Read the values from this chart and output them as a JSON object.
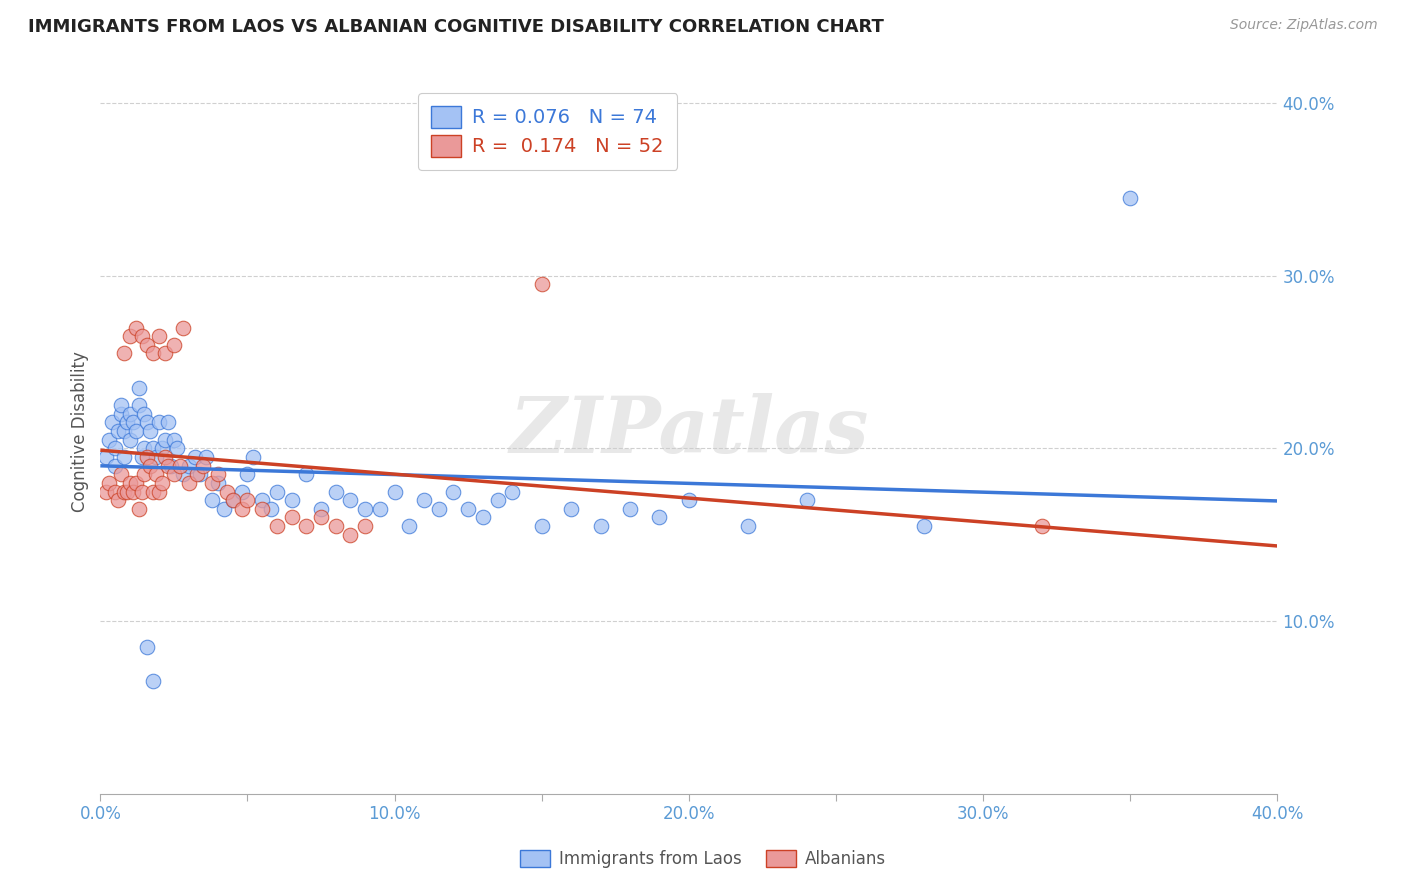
{
  "title": "IMMIGRANTS FROM LAOS VS ALBANIAN COGNITIVE DISABILITY CORRELATION CHART",
  "source": "Source: ZipAtlas.com",
  "ylabel_label": "Cognitive Disability",
  "xmin": 0.0,
  "xmax": 0.4,
  "ymin": 0.0,
  "ymax": 0.42,
  "xticks": [
    0.0,
    0.05,
    0.1,
    0.15,
    0.2,
    0.25,
    0.3,
    0.35,
    0.4
  ],
  "xtick_labels": [
    "0.0%",
    "",
    "10.0%",
    "",
    "20.0%",
    "",
    "30.0%",
    "",
    "40.0%"
  ],
  "yticks": [
    0.1,
    0.2,
    0.3,
    0.4
  ],
  "ytick_labels": [
    "10.0%",
    "20.0%",
    "30.0%",
    "40.0%"
  ],
  "color_blue": "#a4c2f4",
  "color_pink": "#ea9999",
  "color_blue_line": "#3c78d8",
  "color_pink_line": "#cc4125",
  "R_blue": 0.076,
  "N_blue": 74,
  "R_pink": 0.174,
  "N_pink": 52,
  "blue_x": [
    0.002,
    0.003,
    0.004,
    0.005,
    0.005,
    0.006,
    0.007,
    0.007,
    0.008,
    0.008,
    0.009,
    0.01,
    0.01,
    0.011,
    0.012,
    0.013,
    0.013,
    0.014,
    0.015,
    0.015,
    0.016,
    0.017,
    0.018,
    0.019,
    0.02,
    0.021,
    0.022,
    0.023,
    0.024,
    0.025,
    0.026,
    0.028,
    0.03,
    0.032,
    0.034,
    0.036,
    0.038,
    0.04,
    0.042,
    0.045,
    0.048,
    0.05,
    0.052,
    0.055,
    0.058,
    0.06,
    0.065,
    0.07,
    0.075,
    0.08,
    0.085,
    0.09,
    0.095,
    0.1,
    0.105,
    0.11,
    0.115,
    0.12,
    0.125,
    0.13,
    0.135,
    0.14,
    0.15,
    0.16,
    0.17,
    0.18,
    0.19,
    0.2,
    0.22,
    0.24,
    0.016,
    0.018,
    0.28,
    0.35
  ],
  "blue_y": [
    0.195,
    0.205,
    0.215,
    0.2,
    0.19,
    0.21,
    0.22,
    0.225,
    0.195,
    0.21,
    0.215,
    0.22,
    0.205,
    0.215,
    0.21,
    0.225,
    0.235,
    0.195,
    0.22,
    0.2,
    0.215,
    0.21,
    0.2,
    0.195,
    0.215,
    0.2,
    0.205,
    0.215,
    0.19,
    0.205,
    0.2,
    0.185,
    0.19,
    0.195,
    0.185,
    0.195,
    0.17,
    0.18,
    0.165,
    0.17,
    0.175,
    0.185,
    0.195,
    0.17,
    0.165,
    0.175,
    0.17,
    0.185,
    0.165,
    0.175,
    0.17,
    0.165,
    0.165,
    0.175,
    0.155,
    0.17,
    0.165,
    0.175,
    0.165,
    0.16,
    0.17,
    0.175,
    0.155,
    0.165,
    0.155,
    0.165,
    0.16,
    0.17,
    0.155,
    0.17,
    0.085,
    0.065,
    0.155,
    0.345
  ],
  "pink_x": [
    0.002,
    0.003,
    0.005,
    0.006,
    0.007,
    0.008,
    0.009,
    0.01,
    0.011,
    0.012,
    0.013,
    0.014,
    0.015,
    0.016,
    0.017,
    0.018,
    0.019,
    0.02,
    0.021,
    0.022,
    0.023,
    0.025,
    0.027,
    0.03,
    0.033,
    0.035,
    0.038,
    0.04,
    0.043,
    0.045,
    0.048,
    0.05,
    0.055,
    0.06,
    0.065,
    0.07,
    0.075,
    0.08,
    0.085,
    0.09,
    0.008,
    0.01,
    0.012,
    0.014,
    0.016,
    0.018,
    0.02,
    0.022,
    0.025,
    0.028,
    0.15,
    0.32
  ],
  "pink_y": [
    0.175,
    0.18,
    0.175,
    0.17,
    0.185,
    0.175,
    0.175,
    0.18,
    0.175,
    0.18,
    0.165,
    0.175,
    0.185,
    0.195,
    0.19,
    0.175,
    0.185,
    0.175,
    0.18,
    0.195,
    0.19,
    0.185,
    0.19,
    0.18,
    0.185,
    0.19,
    0.18,
    0.185,
    0.175,
    0.17,
    0.165,
    0.17,
    0.165,
    0.155,
    0.16,
    0.155,
    0.16,
    0.155,
    0.15,
    0.155,
    0.255,
    0.265,
    0.27,
    0.265,
    0.26,
    0.255,
    0.265,
    0.255,
    0.26,
    0.27,
    0.295,
    0.155
  ],
  "watermark": "ZIPatlas",
  "grid_color": "#d0d0d0",
  "tick_color": "#5b9bd5",
  "background_color": "#ffffff"
}
